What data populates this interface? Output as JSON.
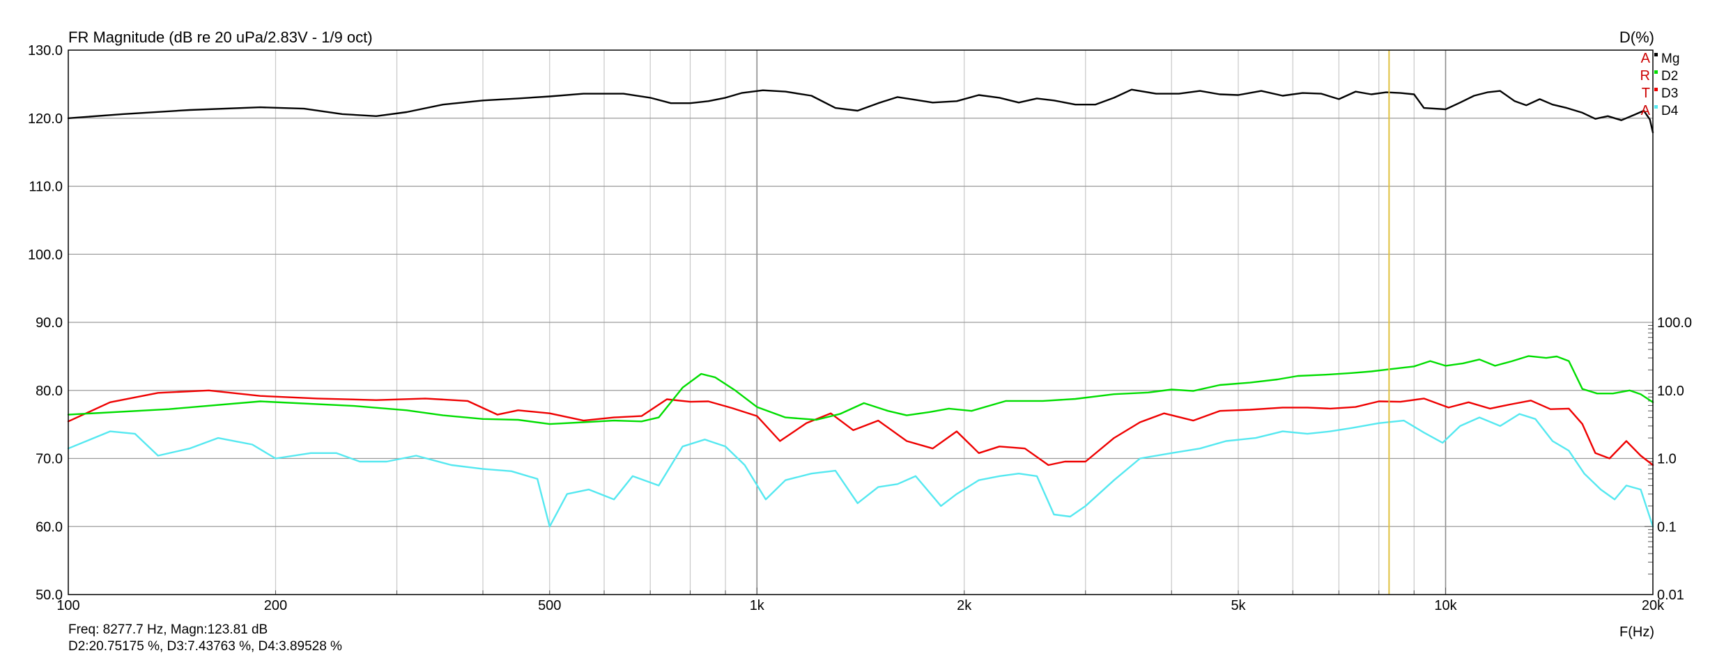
{
  "chart_data": {
    "type": "line",
    "title": "FR Magnitude (dB re 20 uPa/2.83V - 1/9 oct)",
    "right_axis_title": "D(%)",
    "xlabel": "F(Hz)",
    "x_scale": "log",
    "xlim": [
      100,
      20000
    ],
    "x_ticks": [
      {
        "value": 100,
        "label": "100"
      },
      {
        "value": 200,
        "label": "200"
      },
      {
        "value": 500,
        "label": "500"
      },
      {
        "value": 1000,
        "label": "1k"
      },
      {
        "value": 2000,
        "label": "2k"
      },
      {
        "value": 5000,
        "label": "5k"
      },
      {
        "value": 10000,
        "label": "10k"
      },
      {
        "value": 20000,
        "label": "20k"
      }
    ],
    "ylim_left": [
      50,
      130
    ],
    "y_ticks_left": [
      "50.0",
      "60.0",
      "70.0",
      "80.0",
      "90.0",
      "100.0",
      "110.0",
      "120.0",
      "130.0"
    ],
    "y_scale_right": "log",
    "ylim_right": [
      0.01,
      100
    ],
    "y_ticks_right": [
      {
        "value": 0.01,
        "label": "0.01"
      },
      {
        "value": 0.1,
        "label": "0.1"
      },
      {
        "value": 1,
        "label": "1.0"
      },
      {
        "value": 10,
        "label": "10.0"
      },
      {
        "value": 100,
        "label": "100.0"
      }
    ],
    "grid": true,
    "legend_position": "top-right",
    "artа_letters": [
      "A",
      "R",
      "T",
      "A"
    ],
    "cursor_freq_hz": 8277.7,
    "series": [
      {
        "name": "Mg",
        "axis": "left",
        "color": "#000000",
        "points": [
          [
            100,
            120.0
          ],
          [
            120,
            120.6
          ],
          [
            150,
            121.2
          ],
          [
            190,
            121.6
          ],
          [
            220,
            121.4
          ],
          [
            250,
            120.6
          ],
          [
            280,
            120.3
          ],
          [
            310,
            120.9
          ],
          [
            350,
            122.0
          ],
          [
            400,
            122.6
          ],
          [
            450,
            122.9
          ],
          [
            500,
            123.2
          ],
          [
            560,
            123.6
          ],
          [
            640,
            123.6
          ],
          [
            700,
            123.0
          ],
          [
            750,
            122.2
          ],
          [
            800,
            122.2
          ],
          [
            850,
            122.5
          ],
          [
            900,
            123.0
          ],
          [
            950,
            123.7
          ],
          [
            1020,
            124.1
          ],
          [
            1100,
            123.9
          ],
          [
            1200,
            123.3
          ],
          [
            1300,
            121.5
          ],
          [
            1400,
            121.1
          ],
          [
            1500,
            122.2
          ],
          [
            1600,
            123.1
          ],
          [
            1700,
            122.7
          ],
          [
            1800,
            122.3
          ],
          [
            1950,
            122.5
          ],
          [
            2100,
            123.4
          ],
          [
            2250,
            123.0
          ],
          [
            2400,
            122.3
          ],
          [
            2550,
            122.9
          ],
          [
            2700,
            122.6
          ],
          [
            2900,
            122.0
          ],
          [
            3100,
            122.0
          ],
          [
            3300,
            123.0
          ],
          [
            3500,
            124.2
          ],
          [
            3800,
            123.6
          ],
          [
            4100,
            123.6
          ],
          [
            4400,
            124.0
          ],
          [
            4700,
            123.5
          ],
          [
            5000,
            123.4
          ],
          [
            5400,
            124.0
          ],
          [
            5800,
            123.3
          ],
          [
            6200,
            123.7
          ],
          [
            6600,
            123.6
          ],
          [
            7000,
            122.8
          ],
          [
            7400,
            123.9
          ],
          [
            7800,
            123.5
          ],
          [
            8200,
            123.8
          ],
          [
            8600,
            123.7
          ],
          [
            9000,
            123.5
          ],
          [
            9300,
            121.5
          ],
          [
            10000,
            121.3
          ],
          [
            10500,
            122.3
          ],
          [
            11000,
            123.3
          ],
          [
            11500,
            123.8
          ],
          [
            12000,
            124.0
          ],
          [
            12600,
            122.5
          ],
          [
            13100,
            121.9
          ],
          [
            13700,
            122.8
          ],
          [
            14300,
            122.0
          ],
          [
            15000,
            121.5
          ],
          [
            15800,
            120.8
          ],
          [
            16500,
            119.9
          ],
          [
            17200,
            120.3
          ],
          [
            18000,
            119.7
          ],
          [
            18800,
            120.5
          ],
          [
            19400,
            121.1
          ],
          [
            19800,
            119.8
          ],
          [
            20000,
            117.9
          ]
        ]
      },
      {
        "name": "D2",
        "axis": "right",
        "color": "#00dd00",
        "points": [
          [
            100,
            4.4
          ],
          [
            140,
            5.3
          ],
          [
            190,
            6.9
          ],
          [
            260,
            5.9
          ],
          [
            310,
            5.1
          ],
          [
            350,
            4.3
          ],
          [
            400,
            3.8
          ],
          [
            450,
            3.7
          ],
          [
            500,
            3.2
          ],
          [
            560,
            3.4
          ],
          [
            620,
            3.6
          ],
          [
            680,
            3.5
          ],
          [
            720,
            4.0
          ],
          [
            780,
            11.0
          ],
          [
            830,
            17.5
          ],
          [
            870,
            15.5
          ],
          [
            930,
            10.0
          ],
          [
            1000,
            5.7
          ],
          [
            1100,
            4.0
          ],
          [
            1220,
            3.7
          ],
          [
            1320,
            4.5
          ],
          [
            1430,
            6.5
          ],
          [
            1550,
            5.0
          ],
          [
            1650,
            4.3
          ],
          [
            1780,
            4.8
          ],
          [
            1900,
            5.4
          ],
          [
            2050,
            5.0
          ],
          [
            2300,
            7.0
          ],
          [
            2600,
            7.0
          ],
          [
            2900,
            7.5
          ],
          [
            3300,
            8.8
          ],
          [
            3700,
            9.3
          ],
          [
            4000,
            10.3
          ],
          [
            4300,
            9.8
          ],
          [
            4700,
            12.0
          ],
          [
            5200,
            13.0
          ],
          [
            5700,
            14.5
          ],
          [
            6100,
            16.3
          ],
          [
            6700,
            17.0
          ],
          [
            7300,
            18.0
          ],
          [
            7800,
            19.0
          ],
          [
            8300,
            20.5
          ],
          [
            9000,
            22.5
          ],
          [
            9500,
            27.0
          ],
          [
            10000,
            23.0
          ],
          [
            10600,
            25.0
          ],
          [
            11200,
            28.5
          ],
          [
            11800,
            23.0
          ],
          [
            12500,
            27.0
          ],
          [
            13200,
            32.0
          ],
          [
            14000,
            30.0
          ],
          [
            14500,
            31.5
          ],
          [
            15100,
            27.0
          ],
          [
            15800,
            10.5
          ],
          [
            16600,
            9.0
          ],
          [
            17500,
            9.0
          ],
          [
            18500,
            10.0
          ],
          [
            19200,
            8.8
          ],
          [
            20000,
            6.7
          ]
        ]
      },
      {
        "name": "D3",
        "axis": "right",
        "color": "#ee0000",
        "points": [
          [
            100,
            3.5
          ],
          [
            115,
            6.7
          ],
          [
            135,
            9.2
          ],
          [
            160,
            10.0
          ],
          [
            190,
            8.3
          ],
          [
            230,
            7.6
          ],
          [
            280,
            7.2
          ],
          [
            330,
            7.6
          ],
          [
            380,
            7.0
          ],
          [
            420,
            4.4
          ],
          [
            450,
            5.1
          ],
          [
            500,
            4.6
          ],
          [
            560,
            3.6
          ],
          [
            620,
            4.0
          ],
          [
            680,
            4.2
          ],
          [
            740,
            7.4
          ],
          [
            800,
            6.8
          ],
          [
            850,
            6.9
          ],
          [
            920,
            5.5
          ],
          [
            1000,
            4.2
          ],
          [
            1080,
            1.8
          ],
          [
            1180,
            3.3
          ],
          [
            1280,
            4.6
          ],
          [
            1380,
            2.6
          ],
          [
            1500,
            3.6
          ],
          [
            1650,
            1.8
          ],
          [
            1800,
            1.4
          ],
          [
            1950,
            2.5
          ],
          [
            2100,
            1.2
          ],
          [
            2250,
            1.5
          ],
          [
            2450,
            1.4
          ],
          [
            2650,
            0.8
          ],
          [
            2800,
            0.9
          ],
          [
            3000,
            0.9
          ],
          [
            3300,
            2.0
          ],
          [
            3600,
            3.4
          ],
          [
            3900,
            4.6
          ],
          [
            4300,
            3.6
          ],
          [
            4700,
            5.0
          ],
          [
            5200,
            5.2
          ],
          [
            5800,
            5.6
          ],
          [
            6300,
            5.6
          ],
          [
            6800,
            5.4
          ],
          [
            7400,
            5.7
          ],
          [
            8000,
            6.9
          ],
          [
            8600,
            6.8
          ],
          [
            9300,
            7.6
          ],
          [
            10100,
            5.6
          ],
          [
            10800,
            6.7
          ],
          [
            11600,
            5.4
          ],
          [
            12400,
            6.2
          ],
          [
            13300,
            7.1
          ],
          [
            14200,
            5.3
          ],
          [
            15100,
            5.4
          ],
          [
            15800,
            3.2
          ],
          [
            16500,
            1.2
          ],
          [
            17300,
            1.0
          ],
          [
            18300,
            1.8
          ],
          [
            19200,
            1.1
          ],
          [
            20000,
            0.8
          ]
        ]
      },
      {
        "name": "D4",
        "axis": "right",
        "color": "#55e8f0",
        "points": [
          [
            100,
            1.4
          ],
          [
            115,
            2.5
          ],
          [
            125,
            2.3
          ],
          [
            135,
            1.1
          ],
          [
            150,
            1.4
          ],
          [
            165,
            2.0
          ],
          [
            185,
            1.6
          ],
          [
            200,
            1.0
          ],
          [
            225,
            1.2
          ],
          [
            245,
            1.2
          ],
          [
            265,
            0.9
          ],
          [
            290,
            0.9
          ],
          [
            320,
            1.1
          ],
          [
            360,
            0.8
          ],
          [
            400,
            0.7
          ],
          [
            440,
            0.65
          ],
          [
            480,
            0.5
          ],
          [
            500,
            0.1
          ],
          [
            530,
            0.3
          ],
          [
            570,
            0.35
          ],
          [
            620,
            0.25
          ],
          [
            660,
            0.55
          ],
          [
            720,
            0.4
          ],
          [
            780,
            1.5
          ],
          [
            840,
            1.9
          ],
          [
            900,
            1.5
          ],
          [
            960,
            0.8
          ],
          [
            1030,
            0.25
          ],
          [
            1100,
            0.48
          ],
          [
            1200,
            0.6
          ],
          [
            1300,
            0.66
          ],
          [
            1400,
            0.22
          ],
          [
            1500,
            0.38
          ],
          [
            1600,
            0.42
          ],
          [
            1700,
            0.55
          ],
          [
            1850,
            0.2
          ],
          [
            1950,
            0.3
          ],
          [
            2100,
            0.48
          ],
          [
            2250,
            0.55
          ],
          [
            2400,
            0.6
          ],
          [
            2550,
            0.55
          ],
          [
            2700,
            0.15
          ],
          [
            2850,
            0.14
          ],
          [
            3000,
            0.2
          ],
          [
            3300,
            0.48
          ],
          [
            3600,
            1.0
          ],
          [
            4000,
            1.2
          ],
          [
            4400,
            1.4
          ],
          [
            4800,
            1.8
          ],
          [
            5300,
            2.0
          ],
          [
            5800,
            2.5
          ],
          [
            6300,
            2.3
          ],
          [
            6800,
            2.5
          ],
          [
            7300,
            2.8
          ],
          [
            8000,
            3.3
          ],
          [
            8700,
            3.6
          ],
          [
            9300,
            2.4
          ],
          [
            9900,
            1.7
          ],
          [
            10500,
            3.0
          ],
          [
            11200,
            4.0
          ],
          [
            12000,
            3.0
          ],
          [
            12800,
            4.5
          ],
          [
            13500,
            3.8
          ],
          [
            14300,
            1.8
          ],
          [
            15100,
            1.3
          ],
          [
            15900,
            0.6
          ],
          [
            16800,
            0.35
          ],
          [
            17600,
            0.25
          ],
          [
            18300,
            0.4
          ],
          [
            19200,
            0.35
          ],
          [
            20000,
            0.1
          ]
        ]
      }
    ]
  },
  "status": {
    "line1": "Freq: 8277.7 Hz, Magn:123.81 dB",
    "line2": "D2:20.75175 %, D3:7.43763 %, D4:3.89528 %"
  }
}
